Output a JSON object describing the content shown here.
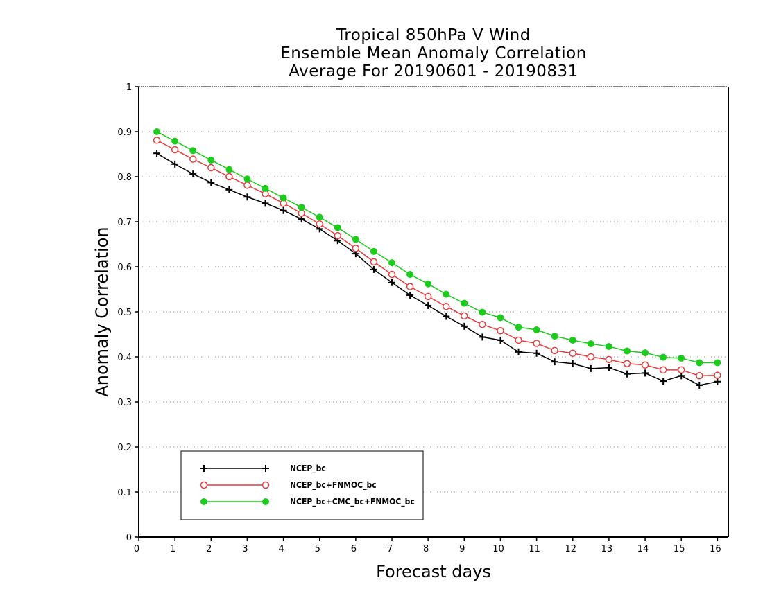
{
  "chart_data": {
    "type": "line",
    "title": [
      "Tropical 850hPa V Wind",
      "Ensemble Mean Anomaly Correlation",
      "Average For 20190601 - 20190831"
    ],
    "xlabel": "Forecast days",
    "ylabel": "Anomaly Correlation",
    "xlim": [
      0,
      16.3
    ],
    "ylim": [
      0,
      1
    ],
    "xticks": [
      0,
      1,
      2,
      3,
      4,
      5,
      6,
      7,
      8,
      9,
      10,
      11,
      12,
      13,
      14,
      15,
      16
    ],
    "yticks": [
      0,
      0.1,
      0.2,
      0.3,
      0.4,
      0.5,
      0.6,
      0.7,
      0.8,
      0.9,
      1
    ],
    "ytick_labels": [
      "0",
      "0.1",
      "0.2",
      "0.3",
      "0.4",
      "0.5",
      "0.6",
      "0.7",
      "0.8",
      "0.9",
      "1"
    ],
    "grid": "horizontal-dotted",
    "legend_position": "bottom-left",
    "x": [
      0.5,
      1,
      1.5,
      2,
      2.5,
      3,
      3.5,
      4,
      4.5,
      5,
      5.5,
      6,
      6.5,
      7,
      7.5,
      8,
      8.5,
      9,
      9.5,
      10,
      10.5,
      11,
      11.5,
      12,
      12.5,
      13,
      13.5,
      14,
      14.5,
      15,
      15.5,
      16
    ],
    "series": [
      {
        "name": "NCEP_bc",
        "color": "#000000",
        "marker": "plus",
        "values": [
          0.852,
          0.828,
          0.806,
          0.787,
          0.771,
          0.755,
          0.741,
          0.725,
          0.706,
          0.684,
          0.658,
          0.629,
          0.594,
          0.565,
          0.537,
          0.514,
          0.49,
          0.468,
          0.444,
          0.437,
          0.411,
          0.408,
          0.389,
          0.385,
          0.374,
          0.376,
          0.362,
          0.364,
          0.346,
          0.358,
          0.337,
          0.345
        ]
      },
      {
        "name": "NCEP_bc+FNMOC_bc",
        "color": "#e83a3a",
        "marker": "open-circle",
        "values": [
          0.881,
          0.86,
          0.839,
          0.82,
          0.8,
          0.781,
          0.762,
          0.741,
          0.719,
          0.695,
          0.669,
          0.641,
          0.611,
          0.583,
          0.556,
          0.534,
          0.512,
          0.491,
          0.472,
          0.458,
          0.437,
          0.43,
          0.414,
          0.408,
          0.4,
          0.394,
          0.385,
          0.382,
          0.371,
          0.371,
          0.358,
          0.359
        ]
      },
      {
        "name": "NCEP_bc+CMC_bc+FNMOC_bc",
        "color": "#1ccc1c",
        "marker": "filled-circle",
        "values": [
          0.9,
          0.879,
          0.858,
          0.837,
          0.816,
          0.795,
          0.774,
          0.753,
          0.732,
          0.71,
          0.687,
          0.661,
          0.634,
          0.609,
          0.583,
          0.562,
          0.539,
          0.519,
          0.499,
          0.487,
          0.466,
          0.46,
          0.446,
          0.437,
          0.429,
          0.423,
          0.413,
          0.409,
          0.399,
          0.397,
          0.387,
          0.387
        ]
      }
    ]
  }
}
